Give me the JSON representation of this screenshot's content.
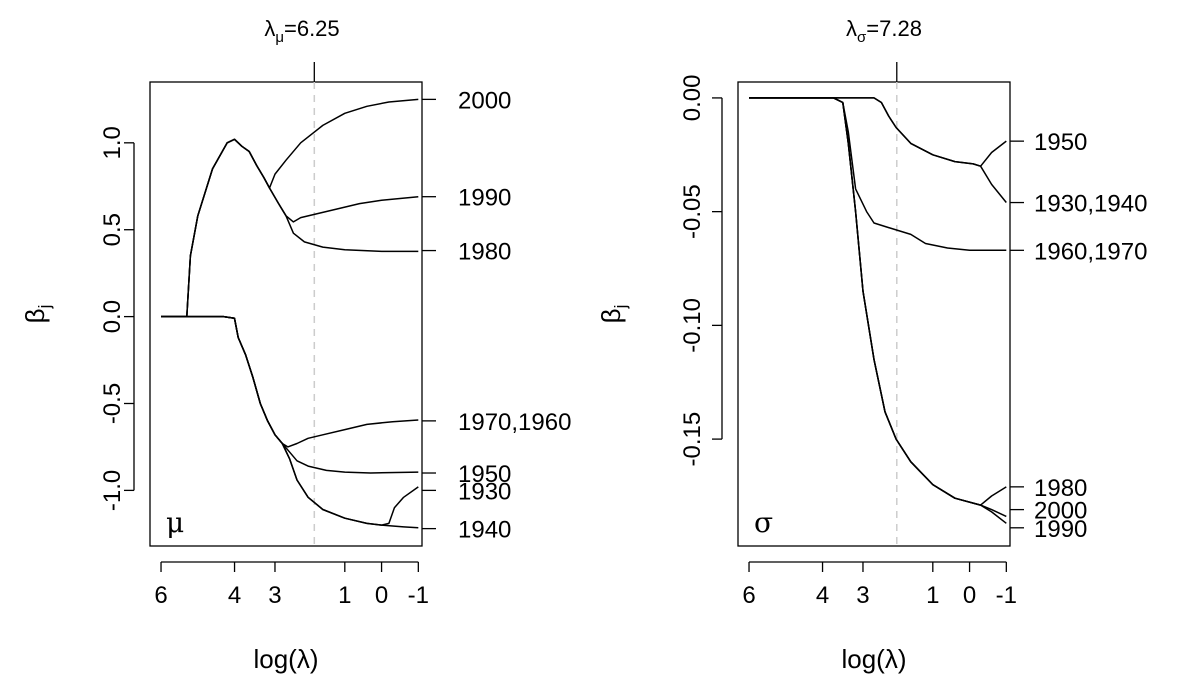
{
  "chart_data": [
    {
      "type": "line",
      "panel_symbol": "μ",
      "title": {
        "lambda": "λ",
        "sub": "μ",
        "value": "=6.25"
      },
      "selected_log_lambda": 1.83,
      "xlabel": "log(λ)",
      "ylabel": {
        "base": "β",
        "sub": "j"
      },
      "xlim": [
        6.3,
        -1.1
      ],
      "ylim": [
        -1.32,
        1.35
      ],
      "x_ticks": [
        {
          "v": 6,
          "label": "6"
        },
        {
          "v": 4,
          "label": "4"
        },
        {
          "v": 2.9,
          "label": "3"
        },
        {
          "v": 1,
          "label": "1"
        },
        {
          "v": 0,
          "label": "0"
        },
        {
          "v": -1,
          "label": "-1"
        }
      ],
      "y_ticks": [
        {
          "v": 1.0,
          "label": "1.0"
        },
        {
          "v": 0.5,
          "label": "0.5"
        },
        {
          "v": 0.0,
          "label": "0.0"
        },
        {
          "v": -0.5,
          "label": "-0.5"
        },
        {
          "v": -1.0,
          "label": "-1.0"
        }
      ],
      "series": [
        {
          "label": "2000",
          "label_y": 1.25,
          "points": [
            [
              6,
              0
            ],
            [
              5.3,
              0
            ],
            [
              5.2,
              0.35
            ],
            [
              5.0,
              0.58
            ],
            [
              4.6,
              0.85
            ],
            [
              4.2,
              1.0
            ],
            [
              4.0,
              1.02
            ],
            [
              3.8,
              0.98
            ],
            [
              3.6,
              0.95
            ],
            [
              3.4,
              0.87
            ],
            [
              3.2,
              0.8
            ],
            [
              3.05,
              0.74
            ],
            [
              2.9,
              0.82
            ],
            [
              2.6,
              0.9
            ],
            [
              2.2,
              1.0
            ],
            [
              1.6,
              1.1
            ],
            [
              1.0,
              1.17
            ],
            [
              0.4,
              1.21
            ],
            [
              -0.2,
              1.235
            ],
            [
              -1,
              1.25
            ]
          ]
        },
        {
          "label": "1990",
          "label_y": 0.69,
          "points": [
            [
              6,
              0
            ],
            [
              5.3,
              0
            ],
            [
              5.2,
              0.35
            ],
            [
              5.0,
              0.58
            ],
            [
              4.6,
              0.85
            ],
            [
              4.2,
              1.0
            ],
            [
              4.0,
              1.02
            ],
            [
              3.8,
              0.98
            ],
            [
              3.6,
              0.95
            ],
            [
              3.4,
              0.87
            ],
            [
              3.2,
              0.8
            ],
            [
              3.05,
              0.74
            ],
            [
              2.8,
              0.65
            ],
            [
              2.6,
              0.58
            ],
            [
              2.4,
              0.545
            ],
            [
              2.2,
              0.57
            ],
            [
              1.8,
              0.59
            ],
            [
              1.2,
              0.62
            ],
            [
              0.6,
              0.65
            ],
            [
              0,
              0.67
            ],
            [
              -1,
              0.69
            ]
          ]
        },
        {
          "label": "1980",
          "label_y": 0.38,
          "points": [
            [
              6,
              0
            ],
            [
              5.3,
              0
            ],
            [
              5.2,
              0.35
            ],
            [
              5.0,
              0.58
            ],
            [
              4.6,
              0.85
            ],
            [
              4.2,
              1.0
            ],
            [
              4.0,
              1.02
            ],
            [
              3.8,
              0.98
            ],
            [
              3.6,
              0.95
            ],
            [
              3.4,
              0.87
            ],
            [
              3.2,
              0.8
            ],
            [
              3.05,
              0.74
            ],
            [
              2.8,
              0.65
            ],
            [
              2.6,
              0.58
            ],
            [
              2.4,
              0.48
            ],
            [
              2.1,
              0.43
            ],
            [
              1.6,
              0.4
            ],
            [
              1.0,
              0.385
            ],
            [
              0,
              0.375
            ],
            [
              -1,
              0.375
            ]
          ]
        },
        {
          "label": "1970,1960",
          "label_y": -0.6,
          "points": [
            [
              6,
              0
            ],
            [
              4.3,
              0
            ],
            [
              4.0,
              -0.01
            ],
            [
              3.9,
              -0.12
            ],
            [
              3.7,
              -0.22
            ],
            [
              3.5,
              -0.35
            ],
            [
              3.3,
              -0.5
            ],
            [
              3.1,
              -0.6
            ],
            [
              2.9,
              -0.68
            ],
            [
              2.7,
              -0.73
            ],
            [
              2.55,
              -0.75
            ],
            [
              2.3,
              -0.73
            ],
            [
              2.0,
              -0.7
            ],
            [
              1.6,
              -0.68
            ],
            [
              1.0,
              -0.65
            ],
            [
              0.4,
              -0.62
            ],
            [
              -0.3,
              -0.605
            ],
            [
              -1,
              -0.595
            ]
          ]
        },
        {
          "label": "1950",
          "label_y": -0.9,
          "points": [
            [
              6,
              0
            ],
            [
              4.3,
              0
            ],
            [
              4.0,
              -0.01
            ],
            [
              3.9,
              -0.12
            ],
            [
              3.7,
              -0.22
            ],
            [
              3.5,
              -0.35
            ],
            [
              3.3,
              -0.5
            ],
            [
              3.1,
              -0.6
            ],
            [
              2.9,
              -0.68
            ],
            [
              2.7,
              -0.73
            ],
            [
              2.5,
              -0.78
            ],
            [
              2.3,
              -0.83
            ],
            [
              2.0,
              -0.86
            ],
            [
              1.5,
              -0.885
            ],
            [
              1.0,
              -0.895
            ],
            [
              0.3,
              -0.9
            ],
            [
              -1,
              -0.895
            ]
          ]
        },
        {
          "label": "1930",
          "label_y": -1.0,
          "points": [
            [
              6,
              0
            ],
            [
              4.3,
              0
            ],
            [
              4.0,
              -0.01
            ],
            [
              3.9,
              -0.12
            ],
            [
              3.7,
              -0.22
            ],
            [
              3.5,
              -0.35
            ],
            [
              3.3,
              -0.5
            ],
            [
              3.1,
              -0.6
            ],
            [
              2.9,
              -0.68
            ],
            [
              2.7,
              -0.73
            ],
            [
              2.5,
              -0.82
            ],
            [
              2.3,
              -0.94
            ],
            [
              2.0,
              -1.04
            ],
            [
              1.6,
              -1.11
            ],
            [
              1.0,
              -1.16
            ],
            [
              0.4,
              -1.19
            ],
            [
              0.0,
              -1.2
            ],
            [
              -0.2,
              -1.19
            ],
            [
              -0.35,
              -1.1
            ],
            [
              -0.6,
              -1.04
            ],
            [
              -1,
              -0.98
            ]
          ]
        },
        {
          "label": "1940",
          "label_y": -1.22,
          "points": [
            [
              6,
              0
            ],
            [
              4.3,
              0
            ],
            [
              4.0,
              -0.01
            ],
            [
              3.9,
              -0.12
            ],
            [
              3.7,
              -0.22
            ],
            [
              3.5,
              -0.35
            ],
            [
              3.3,
              -0.5
            ],
            [
              3.1,
              -0.6
            ],
            [
              2.9,
              -0.68
            ],
            [
              2.7,
              -0.73
            ],
            [
              2.5,
              -0.82
            ],
            [
              2.3,
              -0.94
            ],
            [
              2.0,
              -1.04
            ],
            [
              1.6,
              -1.11
            ],
            [
              1.0,
              -1.16
            ],
            [
              0.4,
              -1.19
            ],
            [
              0.0,
              -1.2
            ],
            [
              -0.3,
              -1.205
            ],
            [
              -0.6,
              -1.21
            ],
            [
              -1,
              -1.215
            ]
          ]
        }
      ]
    },
    {
      "type": "line",
      "panel_symbol": "σ",
      "title": {
        "lambda": "λ",
        "sub": "σ",
        "value": "=7.28"
      },
      "selected_log_lambda": 1.98,
      "xlabel": "log(λ)",
      "ylabel": {
        "base": "β",
        "sub": "j"
      },
      "xlim": [
        6.3,
        -1.1
      ],
      "ylim": [
        -0.197,
        0.007
      ],
      "x_ticks": [
        {
          "v": 6,
          "label": "6"
        },
        {
          "v": 4,
          "label": "4"
        },
        {
          "v": 2.9,
          "label": "3"
        },
        {
          "v": 1,
          "label": "1"
        },
        {
          "v": 0,
          "label": "0"
        },
        {
          "v": -1,
          "label": "-1"
        }
      ],
      "y_ticks": [
        {
          "v": 0.0,
          "label": "0.00"
        },
        {
          "v": -0.05,
          "label": "-0.05"
        },
        {
          "v": -0.1,
          "label": "-0.10"
        },
        {
          "v": -0.15,
          "label": "-0.15"
        }
      ],
      "series": [
        {
          "label": "1950",
          "label_y": -0.019,
          "points": [
            [
              6,
              0
            ],
            [
              2.6,
              0
            ],
            [
              2.4,
              -0.002
            ],
            [
              2.2,
              -0.008
            ],
            [
              2.0,
              -0.013
            ],
            [
              1.6,
              -0.02
            ],
            [
              1.0,
              -0.025
            ],
            [
              0.4,
              -0.028
            ],
            [
              -0.1,
              -0.029
            ],
            [
              -0.3,
              -0.03
            ],
            [
              -0.6,
              -0.024
            ],
            [
              -1,
              -0.019
            ]
          ]
        },
        {
          "label": "1930,1940",
          "label_y": -0.046,
          "points": [
            [
              6,
              0
            ],
            [
              2.6,
              0
            ],
            [
              2.4,
              -0.002
            ],
            [
              2.2,
              -0.008
            ],
            [
              2.0,
              -0.013
            ],
            [
              1.6,
              -0.02
            ],
            [
              1.0,
              -0.025
            ],
            [
              0.4,
              -0.028
            ],
            [
              -0.1,
              -0.029
            ],
            [
              -0.3,
              -0.03
            ],
            [
              -0.6,
              -0.038
            ],
            [
              -1,
              -0.046
            ]
          ]
        },
        {
          "label": "1960,1970",
          "label_y": -0.067,
          "points": [
            [
              6,
              0
            ],
            [
              3.7,
              0
            ],
            [
              3.45,
              -0.002
            ],
            [
              3.3,
              -0.015
            ],
            [
              3.1,
              -0.04
            ],
            [
              2.8,
              -0.05
            ],
            [
              2.6,
              -0.055
            ],
            [
              2.2,
              -0.057
            ],
            [
              1.6,
              -0.06
            ],
            [
              1.2,
              -0.064
            ],
            [
              0.6,
              -0.066
            ],
            [
              0,
              -0.067
            ],
            [
              -1,
              -0.067
            ]
          ]
        },
        {
          "label": "1980",
          "label_y": -0.171,
          "points": [
            [
              6,
              0
            ],
            [
              3.7,
              0
            ],
            [
              3.45,
              -0.002
            ],
            [
              3.3,
              -0.02
            ],
            [
              3.1,
              -0.05
            ],
            [
              2.9,
              -0.085
            ],
            [
              2.6,
              -0.115
            ],
            [
              2.3,
              -0.138
            ],
            [
              2.0,
              -0.15
            ],
            [
              1.6,
              -0.16
            ],
            [
              1.0,
              -0.17
            ],
            [
              0.4,
              -0.176
            ],
            [
              -0.3,
              -0.179
            ],
            [
              -0.6,
              -0.175
            ],
            [
              -1,
              -0.171
            ]
          ]
        },
        {
          "label": "2000",
          "label_y": -0.181,
          "points": [
            [
              6,
              0
            ],
            [
              3.7,
              0
            ],
            [
              3.45,
              -0.002
            ],
            [
              3.3,
              -0.02
            ],
            [
              3.1,
              -0.05
            ],
            [
              2.9,
              -0.085
            ],
            [
              2.6,
              -0.115
            ],
            [
              2.3,
              -0.138
            ],
            [
              2.0,
              -0.15
            ],
            [
              1.6,
              -0.16
            ],
            [
              1.0,
              -0.17
            ],
            [
              0.4,
              -0.176
            ],
            [
              -0.3,
              -0.179
            ],
            [
              -0.6,
              -0.181
            ],
            [
              -1,
              -0.184
            ]
          ]
        },
        {
          "label": "1990",
          "label_y": -0.189,
          "points": [
            [
              6,
              0
            ],
            [
              3.7,
              0
            ],
            [
              3.45,
              -0.002
            ],
            [
              3.3,
              -0.02
            ],
            [
              3.1,
              -0.05
            ],
            [
              2.9,
              -0.085
            ],
            [
              2.6,
              -0.115
            ],
            [
              2.3,
              -0.138
            ],
            [
              2.0,
              -0.15
            ],
            [
              1.6,
              -0.16
            ],
            [
              1.0,
              -0.17
            ],
            [
              0.4,
              -0.176
            ],
            [
              -0.3,
              -0.179
            ],
            [
              -0.6,
              -0.182
            ],
            [
              -1,
              -0.187
            ]
          ]
        }
      ]
    }
  ]
}
